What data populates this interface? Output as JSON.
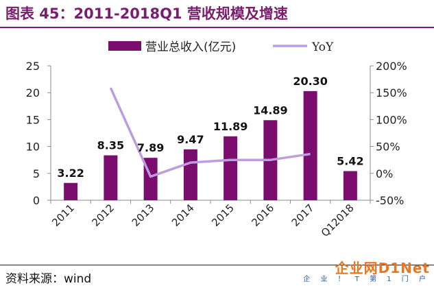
{
  "title": "图表 45：2011-2018Q1 营收规模及增速",
  "source": "资料来源：wind",
  "watermark": {
    "logo": "企业网D1Net",
    "sub": "企 业 ！ T 第 1 门 户"
  },
  "colors": {
    "bar": "#7b0d6e",
    "line": "#bd9ce0",
    "title": "#7a1d6e",
    "axis": "#8a8a8a"
  },
  "chart_data": {
    "type": "bar",
    "categories": [
      "2011",
      "2012",
      "2013",
      "2014",
      "2015",
      "2016",
      "2017",
      "Q12018"
    ],
    "series": [
      {
        "name": "营业总收入(亿元)",
        "type": "bar",
        "axis": "left",
        "values": [
          3.22,
          8.35,
          7.89,
          9.47,
          11.89,
          14.89,
          20.3,
          5.42
        ],
        "labels": [
          "3.22",
          "8.35",
          "7.89",
          "9.47",
          "11.89",
          "14.89",
          "20.30",
          "5.42"
        ]
      },
      {
        "name": "YoY",
        "type": "line",
        "axis": "right",
        "values": [
          null,
          159,
          -6,
          20,
          25,
          25,
          36,
          null
        ]
      }
    ],
    "y_left": {
      "min": 0,
      "max": 25,
      "ticks": [
        "0",
        "5",
        "10",
        "15",
        "20",
        "25"
      ]
    },
    "y_right": {
      "min": -50,
      "max": 200,
      "ticks": [
        "-50%",
        "0%",
        "50%",
        "100%",
        "150%",
        "200%"
      ]
    },
    "legend": "top"
  }
}
